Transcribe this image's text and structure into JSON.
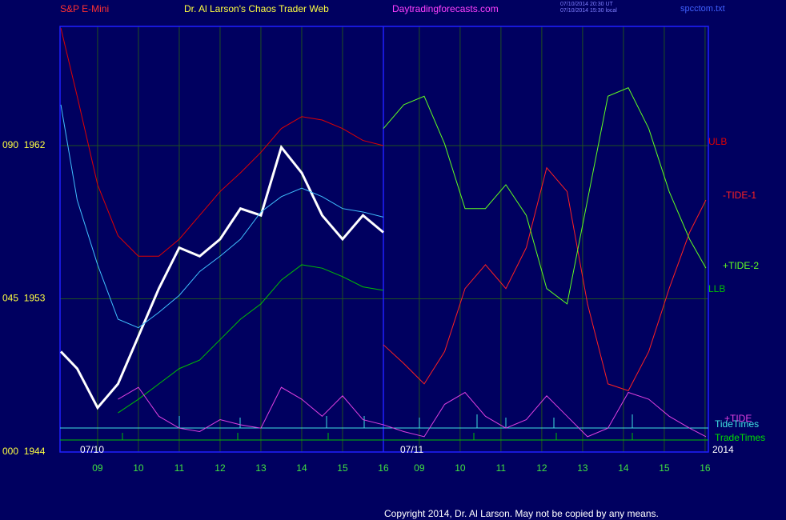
{
  "chart_data": {
    "type": "line",
    "symbol": "S&P E-Mini",
    "title": "Dr. Al Larson's Chaos Trader Web",
    "site": "Daytradingforecasts.com",
    "timestamps": [
      "07/10/2014 20:30 UT",
      "07/10/2014 15:30 local"
    ],
    "file": "spcctom.txt",
    "copyright": "Copyright 2014, Dr. Al Larson. May not be copied by any means.",
    "date_labels": [
      "07/10",
      "07/11"
    ],
    "year": "2014",
    "time_lines": [
      "TideTimes",
      "TradeTimes"
    ],
    "grid": true,
    "xlim": [
      8.08,
      23.96
    ],
    "ylim": [
      1944,
      1969
    ],
    "yticks": [
      {
        "value": 1962,
        "label": "090  1962"
      },
      {
        "value": 1953,
        "label": "045  1953"
      },
      {
        "value": 1944,
        "label": "000  1944"
      }
    ],
    "xticks": [
      {
        "value": 9,
        "label": "09"
      },
      10,
      11,
      12,
      13,
      14,
      15,
      16,
      {
        "value": 16.88,
        "label": "09"
      },
      {
        "value": 17.88,
        "label": "10"
      },
      {
        "value": 18.88,
        "label": "11"
      },
      {
        "value": 19.88,
        "label": "12"
      },
      {
        "value": 20.88,
        "label": "13"
      },
      {
        "value": 21.88,
        "label": "14"
      },
      {
        "value": 22.88,
        "label": "15"
      },
      {
        "value": 23.88,
        "label": "16"
      }
    ],
    "x": [
      8.1,
      8.5,
      9,
      9.5,
      10,
      10.5,
      11,
      11.5,
      12,
      12.5,
      13,
      13.5,
      14,
      14.5,
      15,
      15.5,
      16,
      16.5,
      17,
      17.5,
      18,
      18.5,
      19,
      19.5,
      20,
      20.5,
      21,
      21.5,
      22,
      22.5,
      23,
      23.5,
      23.9
    ],
    "series": [
      {
        "color": "#ffffff",
        "values": [
          1949.9,
          1948.9,
          1946.6,
          1948.0,
          1950.8,
          1953.6,
          1956.0,
          1955.5,
          1956.5,
          1958.3,
          1957.9,
          1961.9,
          1960.4,
          1957.9,
          1956.5,
          1957.9,
          1956.9,
          null,
          null,
          null,
          null,
          null,
          null,
          null,
          null,
          null,
          null,
          null,
          null,
          null,
          null,
          null,
          null
        ]
      },
      {
        "color": "#40c0ff",
        "values": [
          1964.4,
          1958.8,
          1955.0,
          1951.8,
          1951.3,
          1952.2,
          1953.2,
          1954.6,
          1955.5,
          1956.5,
          1958.1,
          1959.0,
          1959.5,
          1959.0,
          1958.3,
          1958.1,
          1957.8,
          null,
          null,
          null,
          null,
          null,
          null,
          null,
          null,
          null,
          null,
          null,
          null,
          null,
          null,
          null,
          null
        ]
      },
      {
        "name": "ULB",
        "color": "#e00000",
        "values": [
          1968.9,
          1964.9,
          1959.7,
          1956.7,
          1955.5,
          1955.5,
          1956.5,
          1957.9,
          1959.3,
          1960.4,
          1961.6,
          1963.0,
          1963.7,
          1963.5,
          1963.0,
          1962.3,
          1962.0,
          null,
          null,
          null,
          null,
          null,
          null,
          null,
          null,
          null,
          null,
          null,
          null,
          null,
          null,
          null,
          null
        ]
      },
      {
        "name": "-TIDE-1",
        "color": "#ff2020",
        "values": [
          null,
          null,
          null,
          null,
          null,
          null,
          null,
          null,
          null,
          null,
          null,
          null,
          null,
          null,
          null,
          null,
          1950.3,
          1949.2,
          1948.0,
          1949.9,
          1953.6,
          1955.0,
          1953.6,
          1956.0,
          1960.7,
          1959.3,
          1952.7,
          1948.0,
          1947.6,
          1949.9,
          1953.6,
          1956.9,
          1958.8
        ]
      },
      {
        "name": "+TIDE-2",
        "color": "#60ff20",
        "values": [
          null,
          null,
          null,
          null,
          null,
          null,
          null,
          null,
          null,
          null,
          null,
          null,
          null,
          null,
          null,
          null,
          1963.0,
          1964.4,
          1964.9,
          1962.1,
          1958.3,
          1958.3,
          1959.7,
          1957.9,
          1953.6,
          1952.7,
          1958.8,
          1964.9,
          1965.4,
          1963.0,
          1959.3,
          1956.5,
          1954.8
        ]
      },
      {
        "name": "LLB",
        "color": "#00c000",
        "values": [
          null,
          null,
          null,
          1946.3,
          1947.1,
          1948.0,
          1948.9,
          1949.4,
          1950.6,
          1951.8,
          1952.7,
          1954.1,
          1955.0,
          1954.8,
          1954.3,
          1953.7,
          1953.5,
          null,
          null,
          null,
          null,
          null,
          null,
          null,
          null,
          null,
          null,
          null,
          null,
          null,
          null,
          null,
          null
        ]
      },
      {
        "name": "+TIDE",
        "color": "#e040e0",
        "values": [
          null,
          null,
          null,
          1947.1,
          1947.8,
          1946.1,
          1945.4,
          1945.2,
          1945.9,
          1945.6,
          1945.4,
          1947.8,
          1947.1,
          1946.1,
          1947.3,
          1945.9,
          1945.6,
          1945.2,
          1944.9,
          1946.8,
          1947.5,
          1946.1,
          1945.4,
          1945.9,
          1947.3,
          1946.1,
          1944.9,
          1945.4,
          1947.5,
          1947.1,
          1946.1,
          1945.4,
          1944.9
        ]
      }
    ]
  }
}
